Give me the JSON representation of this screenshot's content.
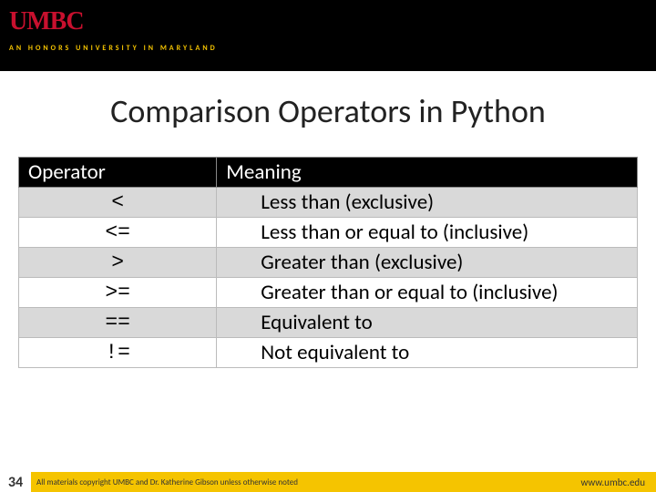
{
  "header": {
    "logo_text": "UMBC",
    "tagline": "AN HONORS UNIVERSITY IN MARYLAND"
  },
  "slide": {
    "title": "Comparison Operators in Python",
    "title_fontsize": 36,
    "title_color": "#222222"
  },
  "table": {
    "type": "table",
    "columns": [
      "Operator",
      "Meaning"
    ],
    "col_widths": [
      "32%",
      "68%"
    ],
    "header_bg": "#000000",
    "header_fg": "#ffffff",
    "row_bg_odd": "#d9d9d9",
    "row_bg_even": "#ffffff",
    "cell_fontsize": 23,
    "operator_font": "Consolas",
    "rows": [
      {
        "op": "<",
        "meaning": "Less than (exclusive)"
      },
      {
        "op": "<=",
        "meaning": "Less than or equal to (inclusive)"
      },
      {
        "op": ">",
        "meaning": "Greater than (exclusive)"
      },
      {
        "op": ">=",
        "meaning": "Greater than or equal to (inclusive)"
      },
      {
        "op": "==",
        "meaning": "Equivalent to"
      },
      {
        "op": "!=",
        "meaning": "Not equivalent to"
      }
    ]
  },
  "footer": {
    "page_number": "34",
    "copyright": "All materials copyright UMBC and Dr. Katherine Gibson unless otherwise noted",
    "url": "www.umbc.edu",
    "bg_color": "#f5c400"
  }
}
